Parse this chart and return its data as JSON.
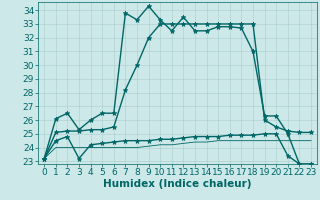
{
  "xlabel": "Humidex (Indice chaleur)",
  "bg_color": "#cce8e8",
  "line_color": "#006666",
  "grid_color": "#aacccc",
  "xlim": [
    -0.5,
    23.5
  ],
  "ylim": [
    22.8,
    34.6
  ],
  "yticks": [
    23,
    24,
    25,
    26,
    27,
    28,
    29,
    30,
    31,
    32,
    33,
    34
  ],
  "xticks": [
    0,
    1,
    2,
    3,
    4,
    5,
    6,
    7,
    8,
    9,
    10,
    11,
    12,
    13,
    14,
    15,
    16,
    17,
    18,
    19,
    20,
    21,
    22,
    23
  ],
  "series": {
    "main": {
      "x": [
        0,
        1,
        2,
        3,
        4,
        5,
        6,
        7,
        8,
        9,
        10,
        11,
        12,
        13,
        14,
        15,
        16,
        17,
        18,
        19,
        20,
        21,
        22,
        23
      ],
      "y": [
        23.2,
        26.1,
        26.5,
        25.3,
        26.0,
        26.5,
        26.5,
        33.8,
        33.3,
        34.3,
        33.3,
        32.5,
        33.5,
        32.5,
        32.5,
        32.8,
        32.8,
        32.7,
        31.0,
        26.3,
        26.3,
        25.0,
        22.8,
        22.8
      ]
    },
    "upper": {
      "x": [
        0,
        1,
        2,
        3,
        4,
        5,
        6,
        7,
        8,
        9,
        10,
        11,
        12,
        13,
        14,
        15,
        16,
        17,
        18,
        19,
        20,
        21,
        22,
        23
      ],
      "y": [
        23.2,
        25.1,
        25.2,
        25.2,
        25.3,
        25.3,
        25.5,
        28.2,
        30.0,
        32.0,
        33.0,
        33.0,
        33.0,
        33.0,
        33.0,
        33.0,
        33.0,
        33.0,
        33.0,
        26.0,
        25.5,
        25.2,
        25.1,
        25.1
      ]
    },
    "lower": {
      "x": [
        0,
        1,
        2,
        3,
        4,
        5,
        6,
        7,
        8,
        9,
        10,
        11,
        12,
        13,
        14,
        15,
        16,
        17,
        18,
        19,
        20,
        21,
        22,
        23
      ],
      "y": [
        23.2,
        24.5,
        24.8,
        23.2,
        24.2,
        24.3,
        24.4,
        24.5,
        24.5,
        24.5,
        24.6,
        24.6,
        24.7,
        24.8,
        24.8,
        24.8,
        24.9,
        24.9,
        24.9,
        25.0,
        25.0,
        23.4,
        22.8,
        22.8
      ]
    },
    "flat": {
      "x": [
        0,
        1,
        2,
        3,
        4,
        5,
        6,
        7,
        8,
        9,
        10,
        11,
        12,
        13,
        14,
        15,
        16,
        17,
        18,
        19,
        20,
        21,
        22,
        23
      ],
      "y": [
        23.2,
        24.0,
        24.0,
        24.0,
        24.0,
        24.0,
        24.0,
        24.0,
        24.0,
        24.1,
        24.2,
        24.2,
        24.3,
        24.4,
        24.4,
        24.5,
        24.5,
        24.5,
        24.5,
        24.5,
        24.5,
        24.5,
        24.5,
        24.5
      ]
    }
  },
  "marker": "*",
  "markersize": 3.5,
  "linewidth": 1.0,
  "font_size": 6.5,
  "label_font_size": 7.5
}
